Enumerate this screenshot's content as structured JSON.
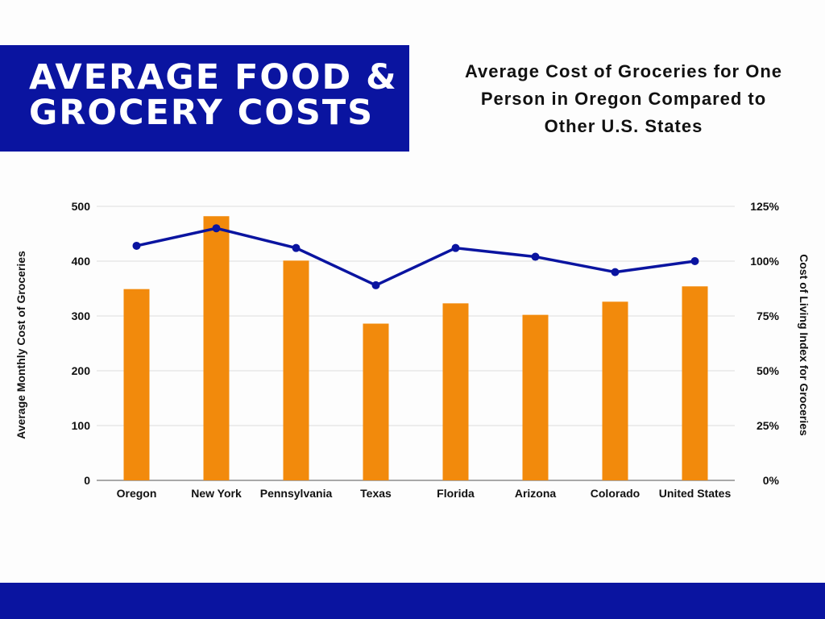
{
  "banner": {
    "line1": "AVERAGE FOOD &",
    "line2": "GROCERY COSTS"
  },
  "chart_title": {
    "line1": "Average Cost of Groceries for One",
    "line2": "Person in Oregon Compared to",
    "line3": "Other U.S. States"
  },
  "colors": {
    "banner": "#0a14a0",
    "bar": "#f28a0c",
    "line": "#0a14a0",
    "grid": "#dddddd"
  },
  "chart_data": {
    "type": "bar+line",
    "title": "Average Cost of Groceries for One Person in Oregon Compared to Other U.S. States",
    "categories": [
      "Oregon",
      "New York",
      "Pennsylvania",
      "Texas",
      "Florida",
      "Arizona",
      "Colorado",
      "United States"
    ],
    "series": [
      {
        "name": "Average Monthly Cost of Groceries",
        "type": "bar",
        "axis": "left",
        "values": [
          349,
          482,
          401,
          286,
          323,
          302,
          326,
          354
        ]
      },
      {
        "name": "Cost of Living Index for Groceries",
        "type": "line",
        "axis": "right",
        "values": [
          107,
          115,
          106,
          89,
          106,
          102,
          95,
          100
        ]
      }
    ],
    "ylabel": "Average Monthly Cost of Groceries",
    "y2label": "Cost of Living Index for Groceries",
    "ylim": [
      0,
      500
    ],
    "y2lim": [
      0,
      125
    ],
    "yticks": [
      "0",
      "100",
      "200",
      "300",
      "400",
      "500"
    ],
    "y2ticks": [
      "0%",
      "25%",
      "50%",
      "75%",
      "100%",
      "125%"
    ],
    "grid": true,
    "legend": "none"
  }
}
